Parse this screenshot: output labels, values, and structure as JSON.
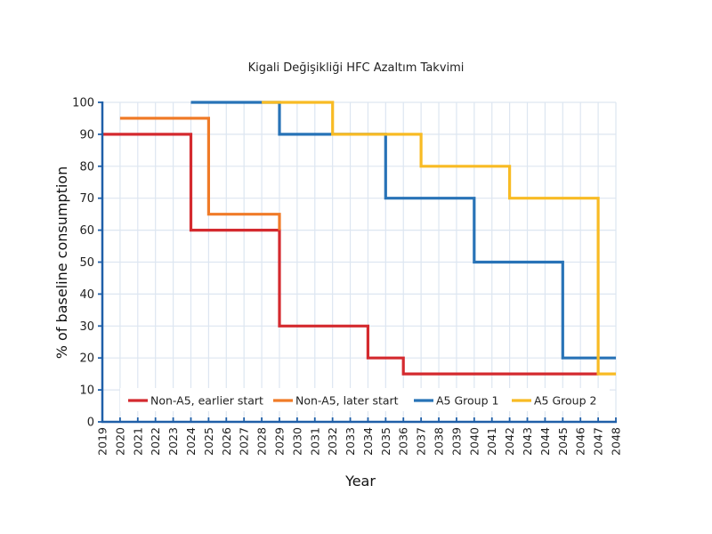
{
  "chart_data": {
    "type": "line",
    "step": true,
    "title": "Kigali Değişikliği HFC Azaltım Takvimi",
    "xlabel": "Year",
    "ylabel": "% of baseline consumption",
    "xlim": [
      2019,
      2048
    ],
    "ylim": [
      0,
      100
    ],
    "yticks": [
      0,
      10,
      20,
      30,
      40,
      50,
      60,
      70,
      80,
      90,
      100
    ],
    "xticks": [
      2019,
      2020,
      2021,
      2022,
      2023,
      2024,
      2025,
      2026,
      2027,
      2028,
      2029,
      2030,
      2031,
      2032,
      2033,
      2034,
      2035,
      2036,
      2037,
      2038,
      2039,
      2040,
      2041,
      2042,
      2043,
      2044,
      2045,
      2046,
      2047,
      2048
    ],
    "grid": true,
    "legend_position": "bottom-inside",
    "series": [
      {
        "name": "Non-A5, earlier start",
        "color": "#d42a2f",
        "points": [
          [
            2019,
            90
          ],
          [
            2024,
            90
          ],
          [
            2024,
            60
          ],
          [
            2029,
            60
          ],
          [
            2029,
            30
          ],
          [
            2034,
            30
          ],
          [
            2034,
            20
          ],
          [
            2036,
            20
          ],
          [
            2036,
            15
          ],
          [
            2047,
            15
          ]
        ]
      },
      {
        "name": "Non-A5, later start",
        "color": "#f07b28",
        "points": [
          [
            2020,
            95
          ],
          [
            2025,
            95
          ],
          [
            2025,
            65
          ],
          [
            2029,
            65
          ],
          [
            2029,
            60
          ]
        ]
      },
      {
        "name": "A5 Group 1",
        "color": "#2873b7",
        "points": [
          [
            2024,
            100
          ],
          [
            2029,
            100
          ],
          [
            2029,
            90
          ],
          [
            2035,
            90
          ],
          [
            2035,
            70
          ],
          [
            2040,
            70
          ],
          [
            2040,
            50
          ],
          [
            2045,
            50
          ],
          [
            2045,
            20
          ],
          [
            2048,
            20
          ]
        ]
      },
      {
        "name": "A5 Group 2",
        "color": "#f8bb24",
        "points": [
          [
            2028,
            100
          ],
          [
            2032,
            100
          ],
          [
            2032,
            90
          ],
          [
            2037,
            90
          ],
          [
            2037,
            80
          ],
          [
            2042,
            80
          ],
          [
            2042,
            70
          ],
          [
            2047,
            70
          ],
          [
            2047,
            15
          ],
          [
            2048,
            15
          ]
        ]
      }
    ]
  },
  "colors": {
    "axis": "#1f5fa8",
    "grid": "#dde6f1"
  }
}
